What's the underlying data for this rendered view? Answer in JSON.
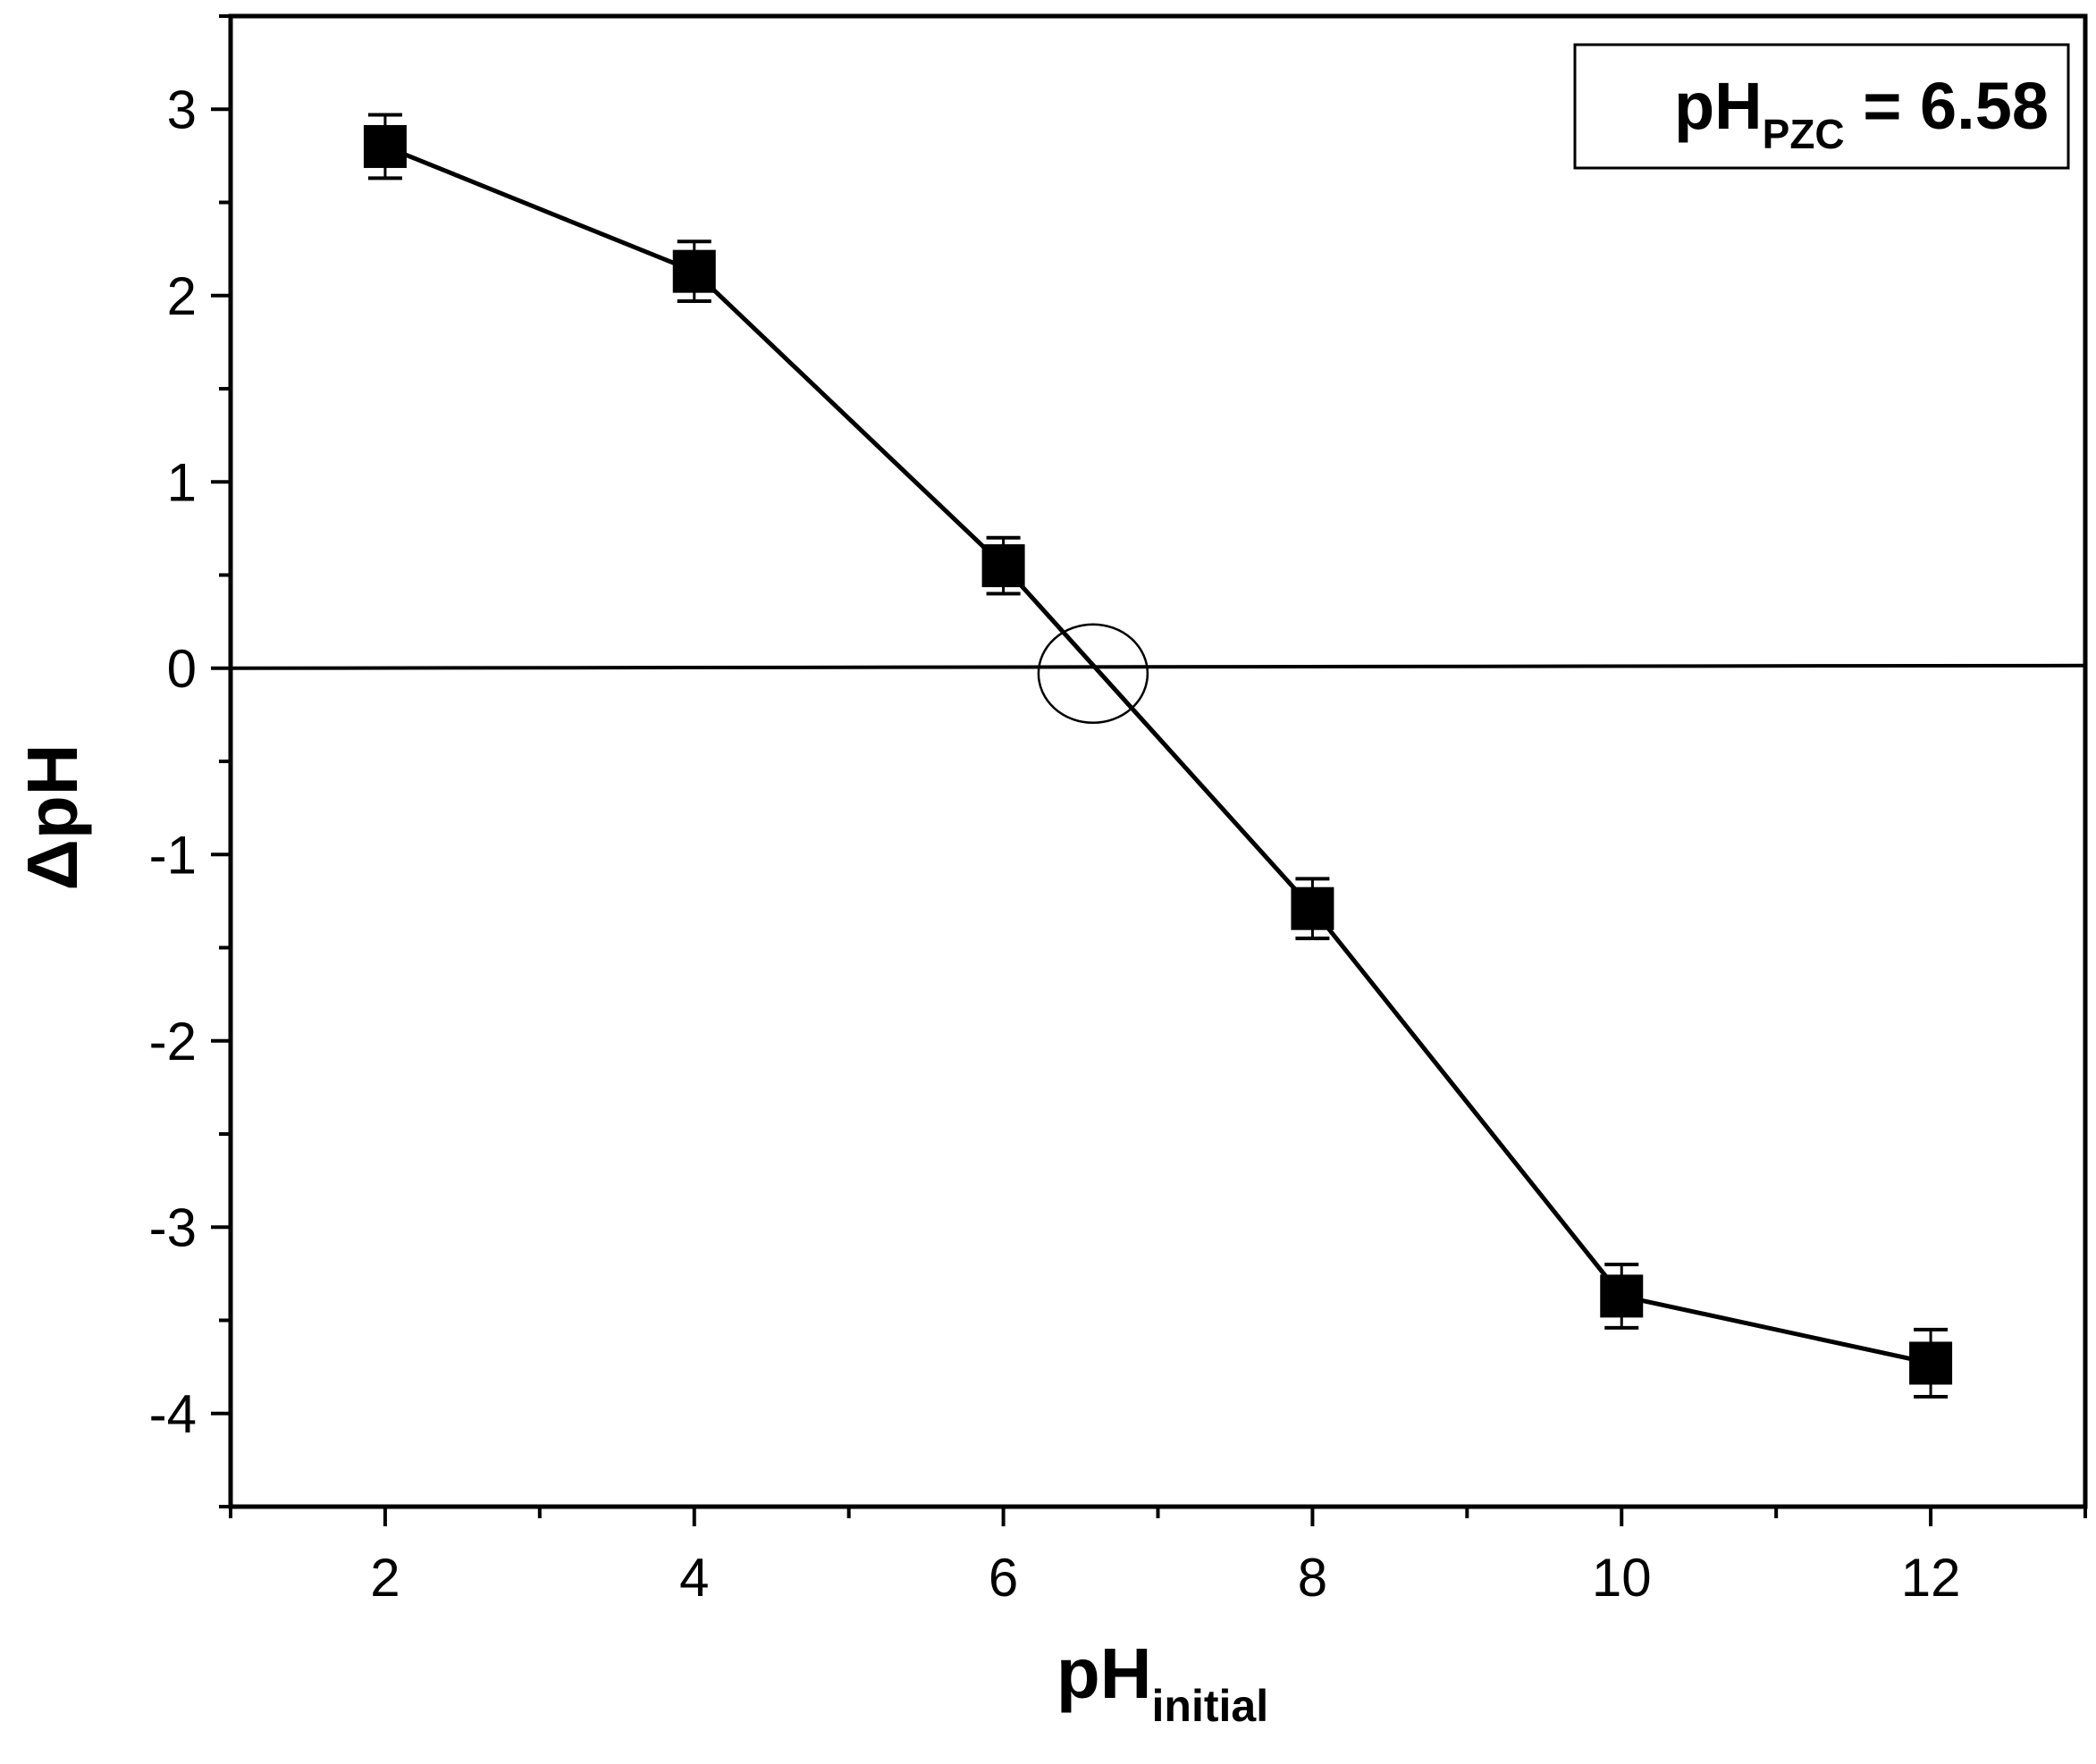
{
  "chart_data": {
    "type": "line",
    "x": [
      2,
      4,
      6,
      8,
      10,
      12
    ],
    "series": [
      {
        "values": [
          2.8,
          2.13,
          0.55,
          -1.29,
          -3.37,
          -3.73
        ],
        "errors": [
          0.17,
          0.16,
          0.15,
          0.16,
          0.17,
          0.18
        ],
        "marker": "square",
        "color": "#000000"
      }
    ],
    "xlabel": {
      "main": "pH",
      "sub": "initial"
    },
    "ylabel": "ΔpH",
    "xlim": [
      1,
      13
    ],
    "ylim": [
      -4.5,
      3.5
    ],
    "xticks": [
      2,
      4,
      6,
      8,
      10,
      12
    ],
    "xtick_labels": [
      "2",
      "4",
      "6",
      "8",
      "10",
      "12"
    ],
    "yticks": [
      -4,
      -3,
      -2,
      -1,
      0,
      1,
      2,
      3
    ],
    "ytick_labels": [
      "-4",
      "-3",
      "-2",
      "-1",
      "0",
      "1",
      "2",
      "3"
    ],
    "reference_line_y": 0,
    "highlight_circle": {
      "x": 6.58,
      "y": 0
    },
    "annotation": {
      "main": "pH",
      "sub": "PZC",
      "rest": " = 6.58",
      "position": "top-right"
    },
    "grid": false,
    "legend": "none"
  }
}
